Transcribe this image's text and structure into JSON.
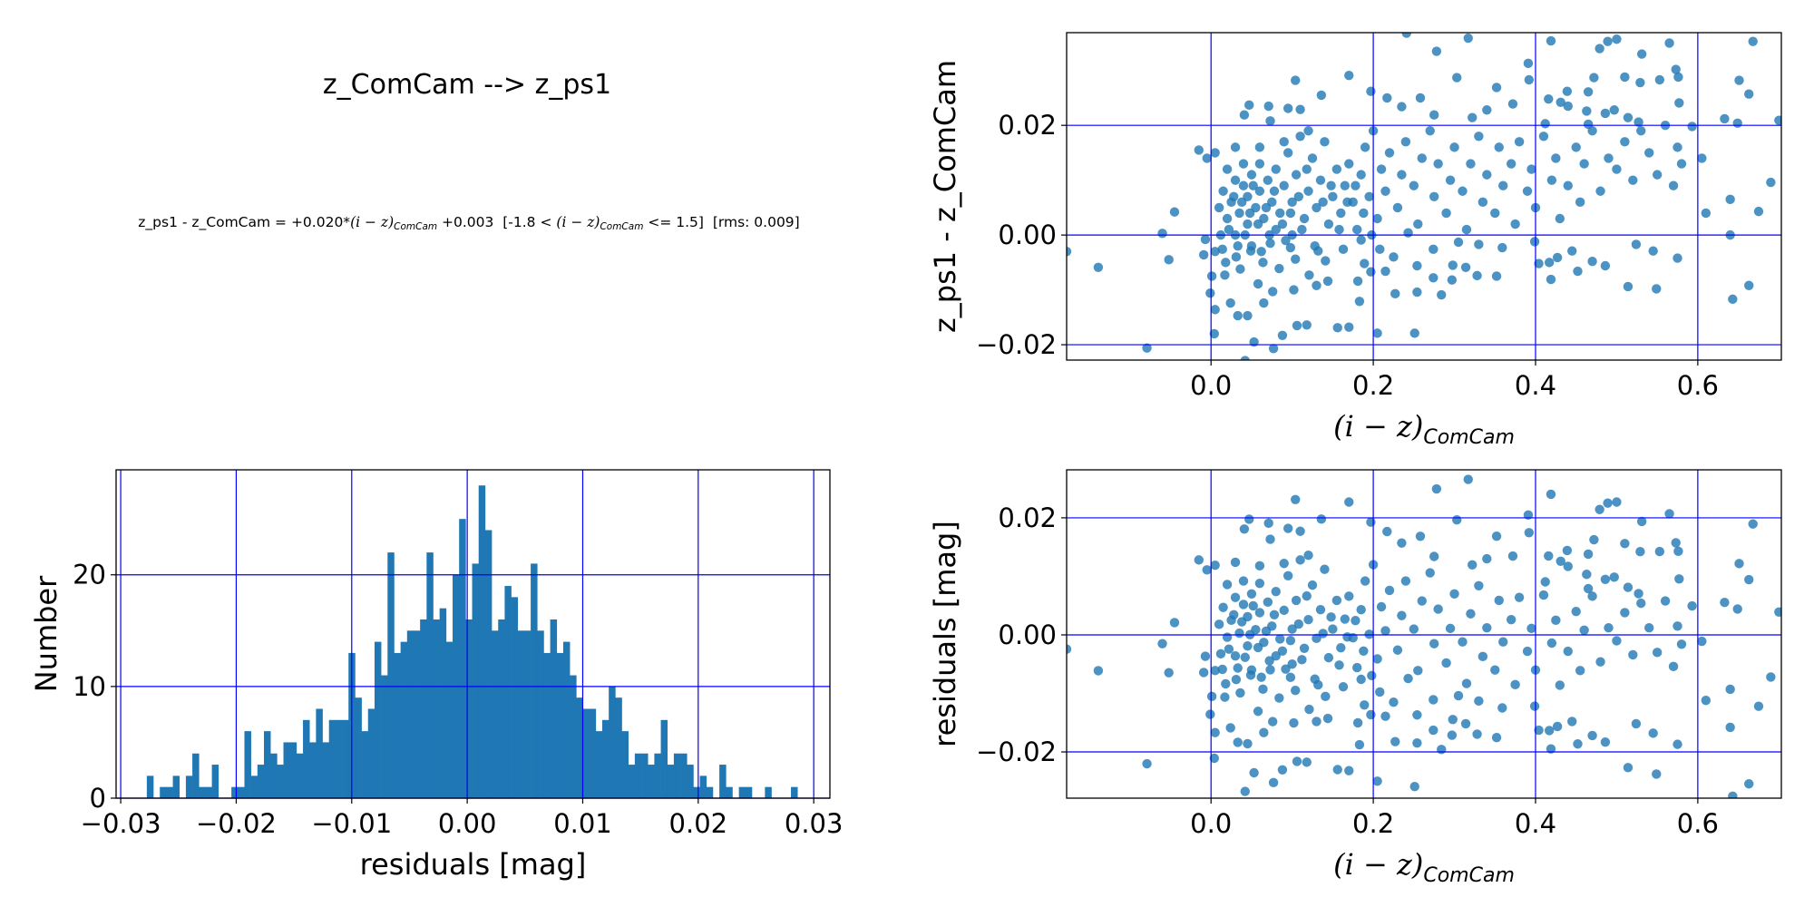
{
  "title": "z_ComCam --> z_ps1",
  "subtitle": {
    "p1": "z_ps1 - z_ComCam = +0.020*",
    "expr": "(i − z)",
    "sub": "ComCam",
    "p2": " +0.003  [-1.8 < ",
    "p3": " <= 1.5]  [rms: 0.009]"
  },
  "colors": {
    "marker": "#1f77b4",
    "grid": "#0000ff",
    "frame": "#000000"
  },
  "chart_data": [
    {
      "type": "scatter",
      "id": "color-term",
      "xlabel": "(i − z)",
      "xlabel_sub": "ComCam",
      "ylabel": "z_ps1 - z_ComCam",
      "xlim": [
        -0.178,
        0.703
      ],
      "ylim": [
        -0.0228,
        0.0369
      ],
      "xticks": [
        0.0,
        0.2,
        0.4,
        0.6
      ],
      "xtick_labels": [
        "0.0",
        "0.2",
        "0.4",
        "0.6"
      ],
      "yticks": [
        -0.02,
        0.0,
        0.02
      ],
      "ytick_labels": [
        "−0.02",
        "0.00",
        "0.02"
      ],
      "grid": true,
      "fit": {
        "slope": 0.02,
        "intercept": 0.003
      },
      "points": [
        [
          0.241,
          0.0368
        ],
        [
          0.317,
          0.0359
        ],
        [
          0.419,
          0.0354
        ],
        [
          0.479,
          0.034
        ],
        [
          0.489,
          0.0353
        ],
        [
          0.5,
          0.0357
        ],
        [
          0.565,
          0.035
        ],
        [
          0.668,
          0.0353
        ],
        [
          0.278,
          0.0335
        ],
        [
          0.531,
          0.033
        ],
        [
          0.391,
          0.0313
        ],
        [
          0.17,
          0.0291
        ],
        [
          0.104,
          0.0282
        ],
        [
          0.303,
          0.0287
        ],
        [
          0.392,
          0.0283
        ],
        [
          0.472,
          0.0287
        ],
        [
          0.51,
          0.0288
        ],
        [
          0.529,
          0.0278
        ],
        [
          0.553,
          0.0283
        ],
        [
          0.573,
          0.0302
        ],
        [
          0.576,
          0.0288
        ],
        [
          0.651,
          0.0282
        ],
        [
          0.663,
          0.0257
        ],
        [
          0.352,
          0.0269
        ],
        [
          0.439,
          0.0262
        ],
        [
          0.465,
          0.0261
        ],
        [
          0.197,
          0.0262
        ],
        [
          0.217,
          0.025
        ],
        [
          0.258,
          0.025
        ],
        [
          0.416,
          0.0248
        ],
        [
          0.431,
          0.0242
        ],
        [
          0.577,
          0.0241
        ],
        [
          0.136,
          0.0255
        ],
        [
          0.372,
          0.0239
        ],
        [
          0.44,
          0.0235
        ],
        [
          0.463,
          0.0226
        ],
        [
          0.486,
          0.0222
        ],
        [
          0.497,
          0.0228
        ],
        [
          0.633,
          0.0212
        ],
        [
          0.7,
          0.0209
        ],
        [
          0.047,
          0.0237
        ],
        [
          0.071,
          0.0235
        ],
        [
          0.095,
          0.0231
        ],
        [
          0.11,
          0.0229
        ],
        [
          0.041,
          0.0219
        ],
        [
          0.073,
          0.0208
        ],
        [
          0.235,
          0.0234
        ],
        [
          0.275,
          0.0219
        ],
        [
          0.322,
          0.0214
        ],
        [
          0.34,
          0.0228
        ],
        [
          0.412,
          0.0203
        ],
        [
          0.465,
          0.0202
        ],
        [
          0.514,
          0.0214
        ],
        [
          0.527,
          0.0206
        ],
        [
          0.593,
          0.0198
        ],
        [
          0.649,
          0.0204
        ],
        [
          -0.178,
          -0.003
        ],
        [
          -0.139,
          -0.0059
        ],
        [
          -0.079,
          -0.0206
        ],
        [
          -0.06,
          0.0003
        ],
        [
          -0.052,
          -0.0045
        ],
        [
          -0.045,
          0.0042
        ],
        [
          0.004,
          -0.018
        ],
        [
          0.053,
          -0.0195
        ],
        [
          0.077,
          -0.0207
        ],
        [
          0.088,
          -0.0183
        ],
        [
          0.106,
          -0.0165
        ],
        [
          0.118,
          -0.0164
        ],
        [
          0.156,
          -0.0169
        ],
        [
          0.17,
          -0.0168
        ],
        [
          0.205,
          -0.0179
        ],
        [
          0.251,
          -0.0179
        ],
        [
          0.042,
          -0.0229
        ],
        [
          0.005,
          -0.0136
        ],
        [
          0.024,
          -0.0124
        ],
        [
          0.033,
          -0.0147
        ],
        [
          0.045,
          -0.0147
        ],
        [
          0.065,
          -0.0124
        ],
        [
          0.183,
          -0.0121
        ],
        [
          0.227,
          -0.0107
        ],
        [
          0.254,
          -0.0104
        ],
        [
          0.284,
          -0.0109
        ],
        [
          0.514,
          -0.0094
        ],
        [
          0.549,
          -0.0098
        ],
        [
          0.643,
          -0.0117
        ],
        [
          0.663,
          -0.0092
        ],
        [
          0.419,
          -0.0081
        ],
        [
          0.352,
          -0.0075
        ],
        [
          0.328,
          -0.0074
        ],
        [
          0.297,
          -0.0082
        ],
        [
          0.274,
          -0.0078
        ],
        [
          0.181,
          -0.0084
        ],
        [
          0.144,
          -0.0084
        ],
        [
          0.13,
          -0.0092
        ],
        [
          0.102,
          -0.01
        ],
        [
          0.076,
          -0.0103
        ],
        [
          0.058,
          -0.0089
        ],
        [
          0.121,
          -0.0073
        ],
        [
          0.197,
          -0.0067
        ],
        [
          0.215,
          -0.0066
        ],
        [
          0.254,
          -0.0056
        ],
        [
          0.298,
          -0.0055
        ],
        [
          0.314,
          -0.0059
        ],
        [
          0.404,
          -0.0052
        ],
        [
          0.417,
          -0.005
        ],
        [
          0.452,
          -0.0066
        ],
        [
          0.47,
          -0.0048
        ],
        [
          0.486,
          -0.0056
        ],
        [
          0.575,
          -0.0042
        ],
        [
          0.445,
          -0.0029
        ],
        [
          0.427,
          -0.0041
        ],
        [
          0.545,
          -0.0029
        ],
        [
          0.524,
          -0.0017
        ],
        [
          0.399,
          -0.0012
        ],
        [
          0.359,
          -0.0023
        ],
        [
          0.33,
          -0.0017
        ],
        [
          0.305,
          -0.0013
        ],
        [
          0.274,
          -0.0026
        ],
        [
          0.225,
          -0.004
        ],
        [
          0.189,
          -0.0052
        ],
        [
          0.141,
          -0.0047
        ],
        [
          0.104,
          -0.0044
        ],
        [
          0.084,
          -0.0061
        ],
        [
          0.064,
          -0.005
        ],
        [
          0.036,
          -0.0062
        ],
        [
          0.017,
          -0.0073
        ],
        [
          0.001,
          -0.0075
        ],
        [
          -0.001,
          -0.0106
        ],
        [
          -0.009,
          -0.0036
        ],
        [
          -0.007,
          -0.0008
        ],
        [
          0.014,
          -0.0026
        ],
        [
          0.031,
          -0.004
        ],
        [
          0.049,
          -0.0029
        ],
        [
          0.073,
          -0.0015
        ],
        [
          0.098,
          -0.0023
        ],
        [
          0.132,
          -0.0029
        ],
        [
          0.163,
          -0.0026
        ],
        [
          0.185,
          -0.0009
        ],
        [
          0.208,
          -0.0026
        ],
        [
          0.243,
          0.0004
        ],
        [
          0.01,
          0.005
        ],
        [
          0.015,
          0.008
        ],
        [
          0.02,
          0.003
        ],
        [
          0.02,
          0.012
        ],
        [
          0.025,
          0.006
        ],
        [
          0.03,
          0.01
        ],
        [
          0.03,
          0.0
        ],
        [
          0.035,
          0.004
        ],
        [
          0.04,
          0.009
        ],
        [
          0.04,
          0.013
        ],
        [
          0.045,
          0.002
        ],
        [
          0.045,
          0.007
        ],
        [
          0.05,
          0.011
        ],
        [
          0.05,
          -0.002
        ],
        [
          0.055,
          0.005
        ],
        [
          0.06,
          0.013
        ],
        [
          0.06,
          0.008
        ],
        [
          0.065,
          0.003
        ],
        [
          0.07,
          0.01
        ],
        [
          0.075,
          0.006
        ],
        [
          0.08,
          0.012
        ],
        [
          0.08,
          0.001
        ],
        [
          0.085,
          0.004
        ],
        [
          0.09,
          0.009
        ],
        [
          0.095,
          0.015
        ],
        [
          0.1,
          0.006
        ],
        [
          0.1,
          0.0
        ],
        [
          0.105,
          0.011
        ],
        [
          0.11,
          0.018
        ],
        [
          0.115,
          0.003
        ],
        [
          0.12,
          0.008
        ],
        [
          0.125,
          0.014
        ],
        [
          0.13,
          0.005
        ],
        [
          0.135,
          0.01
        ],
        [
          0.14,
          0.017
        ],
        [
          0.145,
          0.002
        ],
        [
          0.15,
          0.007
        ],
        [
          0.155,
          0.012
        ],
        [
          0.16,
          0.004
        ],
        [
          0.165,
          0.009
        ],
        [
          0.17,
          0.013
        ],
        [
          0.175,
          0.006
        ],
        [
          0.18,
          0.001
        ],
        [
          0.185,
          0.011
        ],
        [
          0.19,
          0.016
        ],
        [
          0.195,
          0.007
        ],
        [
          0.2,
          0.019
        ],
        [
          0.205,
          0.003
        ],
        [
          0.21,
          0.012
        ],
        [
          0.215,
          0.008
        ],
        [
          0.22,
          0.015
        ],
        [
          0.23,
          0.005
        ],
        [
          0.235,
          0.011
        ],
        [
          0.24,
          0.017
        ],
        [
          0.25,
          0.009
        ],
        [
          0.255,
          0.002
        ],
        [
          0.26,
          0.014
        ],
        [
          0.27,
          0.019
        ],
        [
          0.275,
          0.007
        ],
        [
          0.28,
          0.013
        ],
        [
          0.29,
          0.004
        ],
        [
          0.295,
          0.01
        ],
        [
          0.3,
          0.016
        ],
        [
          0.31,
          0.008
        ],
        [
          0.315,
          0.001
        ],
        [
          0.32,
          0.013
        ],
        [
          0.33,
          0.018
        ],
        [
          0.335,
          0.006
        ],
        [
          0.34,
          0.011
        ],
        [
          0.35,
          0.004
        ],
        [
          0.355,
          0.016
        ],
        [
          0.36,
          0.009
        ],
        [
          0.37,
          0.013
        ],
        [
          0.375,
          0.002
        ],
        [
          0.38,
          0.017
        ],
        [
          0.39,
          0.008
        ],
        [
          0.395,
          0.012
        ],
        [
          0.4,
          0.005
        ],
        [
          0.41,
          0.018
        ],
        [
          0.42,
          0.01
        ],
        [
          0.425,
          0.014
        ],
        [
          0.43,
          0.003
        ],
        [
          0.44,
          0.009
        ],
        [
          0.45,
          0.016
        ],
        [
          0.455,
          0.006
        ],
        [
          0.46,
          0.013
        ],
        [
          0.47,
          0.019
        ],
        [
          0.48,
          0.008
        ],
        [
          0.49,
          0.014
        ],
        [
          0.5,
          0.012
        ],
        [
          0.51,
          0.017
        ],
        [
          0.52,
          0.01
        ],
        [
          0.53,
          0.019
        ],
        [
          0.54,
          0.015
        ],
        [
          0.55,
          0.011
        ],
        [
          0.56,
          0.02
        ],
        [
          0.57,
          0.009
        ],
        [
          0.575,
          0.016
        ],
        [
          0.58,
          0.013
        ],
        [
          0.61,
          0.004
        ],
        [
          0.64,
          0.0065
        ],
        [
          0.64,
          0.0
        ],
        [
          0.675,
          0.0043
        ],
        [
          0.69,
          0.0096
        ],
        [
          0.605,
          0.014
        ],
        [
          0.005,
          -0.003
        ],
        [
          0.012,
          0.0
        ],
        [
          0.018,
          -0.005
        ],
        [
          0.022,
          0.001
        ],
        [
          0.028,
          0.007
        ],
        [
          0.033,
          -0.002
        ],
        [
          0.038,
          0.006
        ],
        [
          0.042,
          0.0
        ],
        [
          0.048,
          0.004
        ],
        [
          0.052,
          0.009
        ],
        [
          0.058,
          0.002
        ],
        [
          0.062,
          -0.003
        ],
        [
          0.068,
          0.005
        ],
        [
          0.072,
          0.0
        ],
        [
          0.078,
          0.008
        ],
        [
          0.088,
          0.002
        ],
        [
          0.092,
          -0.001
        ],
        [
          0.098,
          0.004
        ],
        [
          0.108,
          0.007
        ],
        [
          0.112,
          0.001
        ],
        [
          0.118,
          0.012
        ],
        [
          0.128,
          -0.002
        ],
        [
          0.138,
          0.006
        ],
        [
          0.148,
          0.009
        ],
        [
          0.158,
          0.001
        ],
        [
          0.168,
          0.006
        ],
        [
          0.178,
          0.009
        ],
        [
          0.188,
          0.004
        ],
        [
          0.198,
          0.0
        ],
        [
          0.03,
          0.016
        ],
        [
          0.06,
          0.016
        ],
        [
          0.09,
          0.017
        ],
        [
          0.12,
          0.019
        ],
        [
          0.005,
          0.015
        ],
        [
          -0.015,
          0.0155
        ],
        [
          -0.005,
          0.014
        ]
      ]
    },
    {
      "type": "bar",
      "id": "residual-histogram",
      "xlabel": "residuals [mag]",
      "ylabel": "Number",
      "xlim": [
        -0.0304,
        0.0314
      ],
      "ylim": [
        0,
        29.4
      ],
      "xticks": [
        -0.03,
        -0.02,
        -0.01,
        0.0,
        0.01,
        0.02,
        0.03
      ],
      "xtick_labels": [
        "−0.03",
        "−0.02",
        "−0.01",
        "0.00",
        "0.01",
        "0.02",
        "0.03"
      ],
      "yticks": [
        0,
        10,
        20
      ],
      "ytick_labels": [
        "0",
        "10",
        "20"
      ],
      "grid": true,
      "bin_range": [
        -0.02774,
        0.02859
      ],
      "counts": [
        2,
        0,
        1,
        1,
        2,
        0,
        2,
        4,
        1,
        1,
        3,
        0,
        0,
        1,
        1,
        6,
        2,
        3,
        6,
        4,
        3,
        5,
        5,
        4,
        7,
        5,
        8,
        5,
        7,
        7,
        7,
        13,
        9,
        6,
        8,
        14,
        11,
        22,
        13,
        14,
        15,
        15,
        16,
        22,
        16,
        17,
        14,
        20,
        25,
        16,
        21,
        28,
        24,
        15,
        16,
        19,
        18,
        15,
        15,
        21,
        15,
        13,
        16,
        13,
        14,
        11,
        9,
        8,
        8,
        6,
        7,
        10,
        9,
        6,
        3,
        4,
        4,
        3,
        4,
        7,
        3,
        4,
        4,
        3,
        1,
        2,
        1,
        0,
        3,
        1,
        0,
        1,
        1,
        0,
        0,
        1,
        0,
        0,
        0,
        1
      ]
    },
    {
      "type": "scatter",
      "id": "residuals-vs-color",
      "xlabel": "(i − z)",
      "xlabel_sub": "ComCam",
      "ylabel": "residuals [mag]",
      "xlim": [
        -0.178,
        0.703
      ],
      "ylim": [
        -0.0279,
        0.0282
      ],
      "xticks": [
        0.0,
        0.2,
        0.4,
        0.6
      ],
      "xtick_labels": [
        "0.0",
        "0.2",
        "0.4",
        "0.6"
      ],
      "yticks": [
        -0.02,
        0.0,
        0.02
      ],
      "ytick_labels": [
        "−0.02",
        "0.00",
        "0.02"
      ],
      "grid": true,
      "points_source": "color-term minus fit"
    }
  ]
}
